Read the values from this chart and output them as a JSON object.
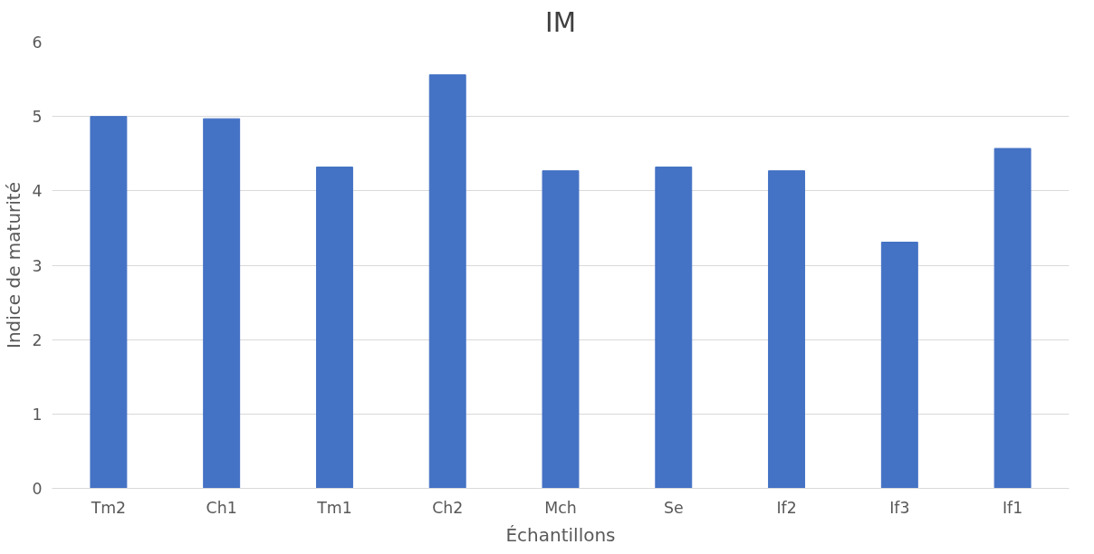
{
  "chart_data": {
    "type": "bar",
    "title": "IM",
    "xlabel": "Échantillons",
    "ylabel": "Indice de maturité",
    "categories": [
      "Tm2",
      "Ch1",
      "Tm1",
      "Ch2",
      "Mch",
      "Se",
      "If2",
      "If3",
      "If1"
    ],
    "values": [
      5.0,
      4.97,
      4.32,
      5.56,
      4.27,
      4.32,
      4.27,
      3.31,
      4.57
    ],
    "color": "#4472c4",
    "ylim": [
      0,
      6
    ],
    "yticks": [
      0,
      1,
      2,
      3,
      4,
      5,
      6
    ],
    "grid": "y"
  }
}
